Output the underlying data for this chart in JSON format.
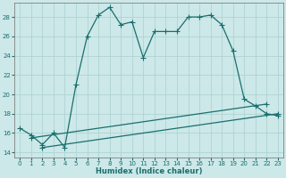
{
  "xlabel": "Humidex (Indice chaleur)",
  "bg_color": "#cce8e8",
  "grid_color": "#aacfcf",
  "line_color": "#1a6e6e",
  "xlim": [
    -0.5,
    23.5
  ],
  "ylim": [
    13.5,
    29.5
  ],
  "yticks": [
    14,
    16,
    18,
    20,
    22,
    24,
    26,
    28
  ],
  "xticks": [
    0,
    1,
    2,
    3,
    4,
    5,
    6,
    7,
    8,
    9,
    10,
    11,
    12,
    13,
    14,
    15,
    16,
    17,
    18,
    19,
    20,
    21,
    22,
    23
  ],
  "line1_x": [
    0,
    1,
    2,
    3,
    4,
    5,
    6,
    7,
    8,
    9,
    10,
    11,
    12,
    13,
    14,
    15,
    16,
    17,
    18,
    19,
    20,
    21,
    22,
    23
  ],
  "line1_y": [
    16.5,
    15.8,
    14.8,
    16.0,
    14.5,
    21.0,
    26.0,
    28.2,
    29.0,
    27.2,
    27.5,
    23.8,
    26.5,
    26.5,
    26.5,
    28.0,
    28.0,
    28.2,
    27.2,
    24.5,
    19.5,
    18.8,
    18.0,
    17.8
  ],
  "line2_x": [
    1,
    22
  ],
  "line2_y": [
    15.5,
    19.0
  ],
  "line3_x": [
    2,
    23
  ],
  "line3_y": [
    14.5,
    18.0
  ]
}
